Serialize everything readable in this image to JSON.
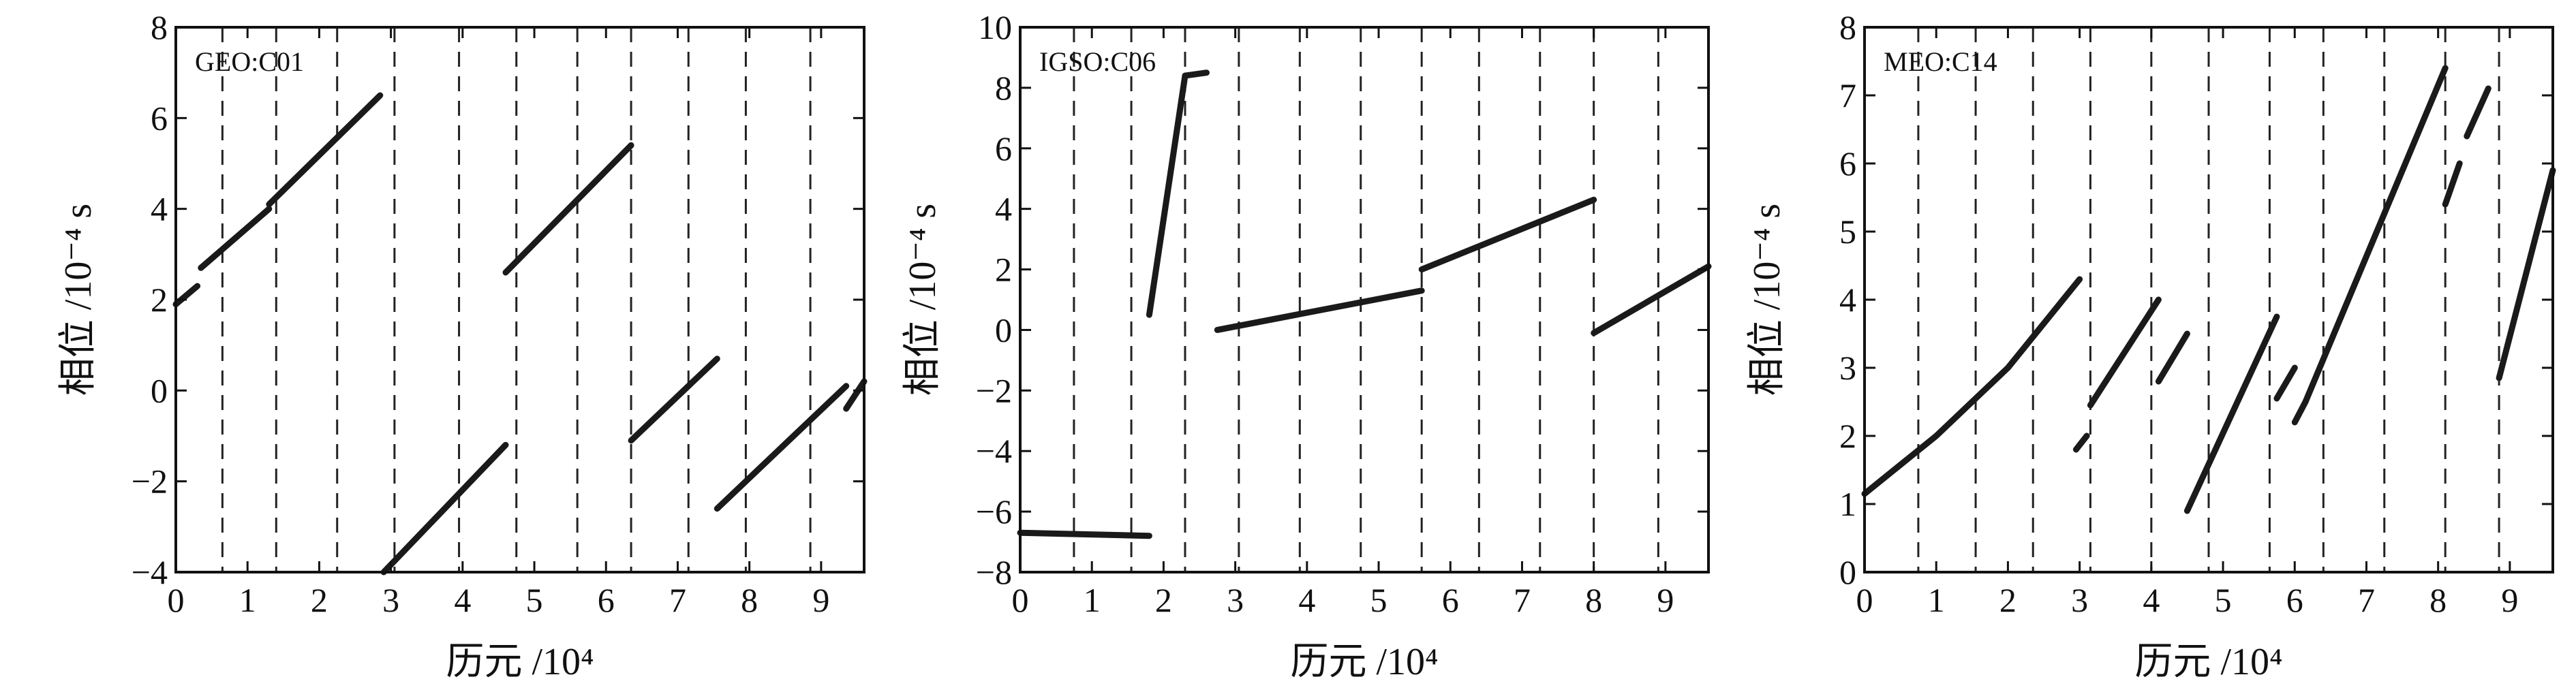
{
  "chart_data": [
    {
      "type": "line",
      "tag": "GEO:C01",
      "xlabel": "历元 /10⁴",
      "ylabel": "相位 /10⁻⁴ s",
      "xlim": [
        0,
        9.6
      ],
      "ylim": [
        -4,
        8
      ],
      "xticks": [
        0,
        1,
        2,
        3,
        4,
        5,
        6,
        7,
        8,
        9
      ],
      "yticks": [
        -4,
        -2,
        0,
        2,
        4,
        6,
        8
      ],
      "boundaries": [
        0.65,
        1.4,
        2.25,
        3.05,
        3.95,
        4.75,
        5.6,
        6.35,
        7.15,
        7.95,
        8.85
      ],
      "series": [
        {
          "x": [
            0.0,
            0.3
          ],
          "y": [
            1.9,
            2.3
          ]
        },
        {
          "x": [
            0.35,
            1.3
          ],
          "y": [
            2.7,
            4.0
          ]
        },
        {
          "x": [
            1.3,
            2.85
          ],
          "y": [
            4.1,
            6.5
          ]
        },
        {
          "x": [
            2.9,
            4.6
          ],
          "y": [
            -4.0,
            -1.2
          ]
        },
        {
          "x": [
            4.6,
            6.35
          ],
          "y": [
            2.6,
            5.4
          ]
        },
        {
          "x": [
            6.35,
            7.55
          ],
          "y": [
            -1.1,
            0.7
          ]
        },
        {
          "x": [
            7.55,
            9.35
          ],
          "y": [
            -2.6,
            0.1
          ]
        },
        {
          "x": [
            9.35,
            9.6
          ],
          "y": [
            -0.4,
            0.2
          ]
        }
      ]
    },
    {
      "type": "line",
      "tag": "IGSO:C06",
      "xlabel": "历元 /10⁴",
      "ylabel": "相位 /10⁻⁴ s",
      "xlim": [
        0,
        9.6
      ],
      "ylim": [
        -8,
        10
      ],
      "xticks": [
        0,
        1,
        2,
        3,
        4,
        5,
        6,
        7,
        8,
        9
      ],
      "yticks": [
        -8,
        -6,
        -4,
        -2,
        0,
        2,
        4,
        6,
        8,
        10
      ],
      "boundaries": [
        0.75,
        1.55,
        2.3,
        3.05,
        3.9,
        4.75,
        5.6,
        6.4,
        7.25,
        8.0,
        8.9
      ],
      "series": [
        {
          "x": [
            0.0,
            1.8
          ],
          "y": [
            -6.7,
            -6.8
          ]
        },
        {
          "x": [
            1.8,
            2.3
          ],
          "y": [
            0.5,
            8.4
          ]
        },
        {
          "x": [
            2.3,
            2.6
          ],
          "y": [
            8.4,
            8.5
          ]
        },
        {
          "x": [
            2.75,
            5.6
          ],
          "y": [
            0.0,
            1.3
          ]
        },
        {
          "x": [
            5.6,
            8.0
          ],
          "y": [
            2.0,
            4.3
          ]
        },
        {
          "x": [
            8.0,
            9.6
          ],
          "y": [
            -0.1,
            2.1
          ]
        }
      ]
    },
    {
      "type": "line",
      "tag": "MEO:C14",
      "xlabel": "历元 /10⁴",
      "ylabel": "相位 /10⁻⁴ s",
      "xlim": [
        0,
        9.6
      ],
      "ylim": [
        0,
        8
      ],
      "xticks": [
        0,
        1,
        2,
        3,
        4,
        5,
        6,
        7,
        8,
        9
      ],
      "yticks": [
        0,
        1,
        2,
        3,
        4,
        5,
        6,
        7,
        8
      ],
      "boundaries": [
        0.75,
        1.55,
        2.35,
        3.15,
        4.0,
        4.8,
        5.65,
        6.4,
        7.25,
        8.1,
        8.85
      ],
      "series": [
        {
          "x": [
            0.0,
            1.0,
            2.0,
            3.0
          ],
          "y": [
            1.15,
            2.0,
            3.0,
            4.3
          ]
        },
        {
          "x": [
            2.95,
            3.1
          ],
          "y": [
            1.8,
            2.0
          ]
        },
        {
          "x": [
            3.15,
            4.1
          ],
          "y": [
            2.45,
            4.0
          ]
        },
        {
          "x": [
            4.1,
            4.5
          ],
          "y": [
            2.8,
            3.5
          ]
        },
        {
          "x": [
            4.5,
            5.75
          ],
          "y": [
            0.9,
            3.75
          ]
        },
        {
          "x": [
            5.75,
            6.0
          ],
          "y": [
            2.55,
            3.0
          ]
        },
        {
          "x": [
            6.0,
            6.15
          ],
          "y": [
            2.2,
            2.5
          ]
        },
        {
          "x": [
            6.15,
            8.1
          ],
          "y": [
            2.5,
            7.4
          ]
        },
        {
          "x": [
            8.1,
            8.3
          ],
          "y": [
            5.4,
            6.0
          ]
        },
        {
          "x": [
            8.4,
            8.7
          ],
          "y": [
            6.4,
            7.1
          ]
        },
        {
          "x": [
            8.85,
            9.6
          ],
          "y": [
            2.85,
            5.9
          ]
        }
      ]
    }
  ]
}
